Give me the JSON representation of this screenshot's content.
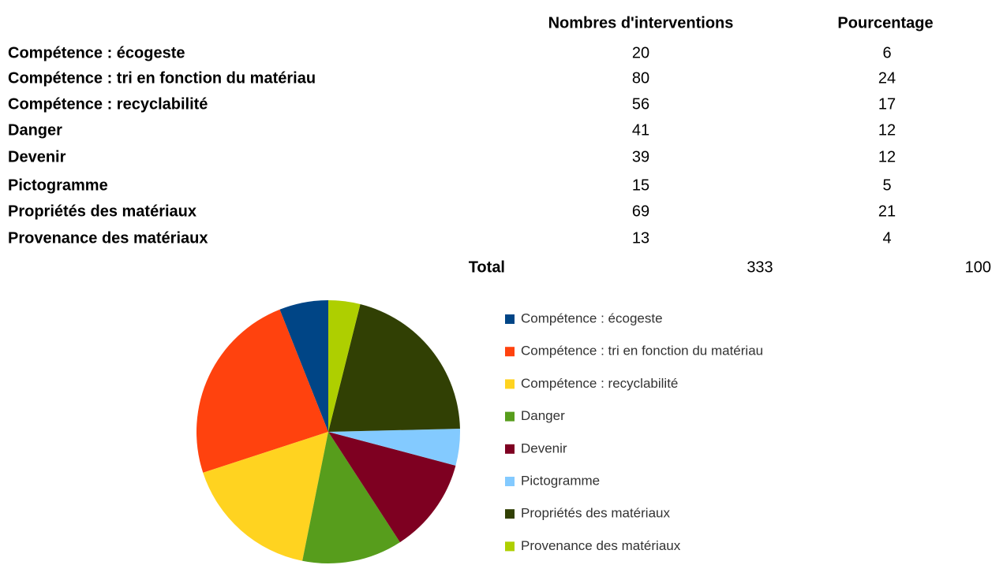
{
  "table": {
    "header": [
      "Nombres d'interventions",
      "Pourcentage"
    ],
    "rows": [
      [
        "Compétence : écogeste",
        20,
        6
      ],
      [
        "Compétence : tri en fonction du matériau",
        80,
        24
      ],
      [
        "Compétence : recyclabilité",
        56,
        17
      ],
      [
        "Danger",
        41,
        12
      ],
      [
        "Devenir",
        39,
        12
      ],
      [
        "Pictogramme",
        15,
        5
      ],
      [
        "Propriétés des matériaux",
        69,
        21
      ],
      [
        "Provenance des matériaux",
        13,
        4
      ]
    ],
    "total": [
      "Total",
      333,
      100
    ]
  },
  "chart_data": {
    "type": "pie",
    "categories": [
      "Compétence : écogeste",
      "Compétence : tri en fonction du matériau",
      "Compétence : recyclabilité",
      "Danger",
      "Devenir",
      "Pictogramme",
      "Propriétés des matériaux",
      "Provenance des matériaux"
    ],
    "values": [
      20,
      80,
      56,
      41,
      39,
      15,
      69,
      13
    ],
    "colors": [
      "#004586",
      "#ff420e",
      "#ffd320",
      "#579d1c",
      "#7e0021",
      "#83caff",
      "#314004",
      "#aecf00"
    ],
    "legend": "right"
  }
}
